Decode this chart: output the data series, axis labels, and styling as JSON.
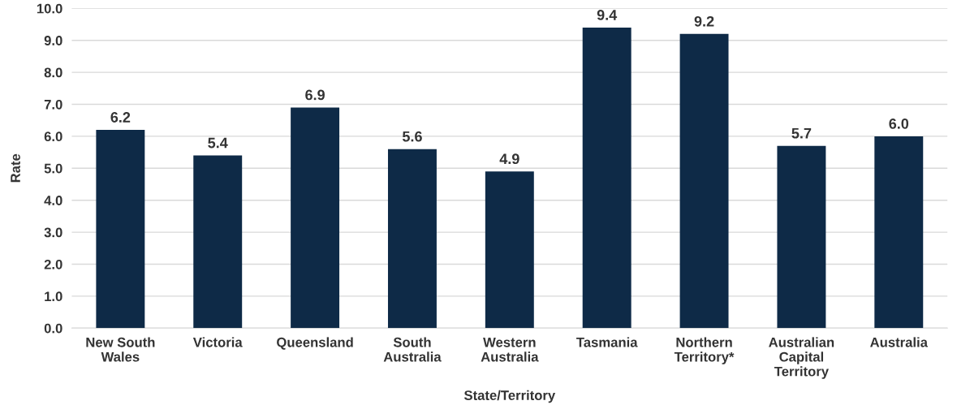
{
  "chart_data": {
    "type": "bar",
    "xlabel": "State/Territory",
    "ylabel": "Rate",
    "categories": [
      "New South Wales",
      "Victoria",
      "Queensland",
      "South Australia",
      "Western Australia",
      "Tasmania",
      "Northern Territory*",
      "Australian Capital Territory",
      "Australia"
    ],
    "values": [
      6.2,
      5.4,
      6.9,
      5.6,
      4.9,
      9.4,
      9.2,
      5.7,
      6.0
    ],
    "value_labels": [
      "6.2",
      "5.4",
      "6.9",
      "5.6",
      "4.9",
      "9.4",
      "9.2",
      "5.7",
      "6.0"
    ],
    "color": "#0e2a47",
    "ylim": [
      0,
      10
    ],
    "yticks": [
      {
        "value": 0,
        "label": "0.0"
      },
      {
        "value": 1,
        "label": "1.0"
      },
      {
        "value": 2,
        "label": "2.0"
      },
      {
        "value": 3,
        "label": "3.0"
      },
      {
        "value": 4,
        "label": "4.0"
      },
      {
        "value": 5,
        "label": "5.0"
      },
      {
        "value": 6,
        "label": "6.0"
      },
      {
        "value": 7,
        "label": "7.0"
      },
      {
        "value": 8,
        "label": "8.0"
      },
      {
        "value": 9,
        "label": "9.0"
      },
      {
        "value": 10,
        "label": "10.0"
      }
    ],
    "grid": "y"
  }
}
